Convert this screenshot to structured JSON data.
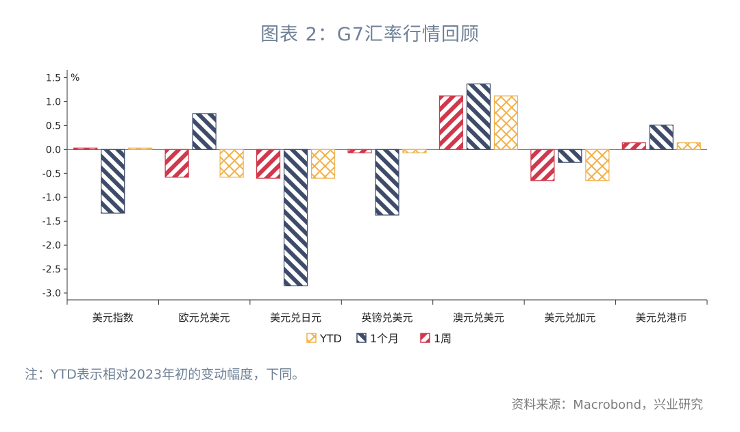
{
  "title": "图表 2：G7汇率行情回顾",
  "note": "注：YTD表示相对2023年初的变动幅度，下同。",
  "source": "资料来源：Macrobond，兴业研究",
  "chart_data": {
    "type": "bar",
    "unit": "%",
    "categories": [
      "美元指数",
      "欧元兑美元",
      "美元兑日元",
      "英镑兑美元",
      "澳元兑美元",
      "美元兑加元",
      "美元兑港币"
    ],
    "series": [
      {
        "name": "1周",
        "color": "#d0384b",
        "pattern": "diagonal",
        "values": [
          0.03,
          -0.58,
          -0.6,
          -0.07,
          1.12,
          -0.65,
          0.14
        ]
      },
      {
        "name": "1个月",
        "color": "#3e4c6a",
        "pattern": "diagonal",
        "values": [
          -1.33,
          0.75,
          -2.85,
          -1.37,
          1.37,
          -0.27,
          0.51
        ]
      },
      {
        "name": "YTD",
        "color": "#f0b14a",
        "pattern": "crosshatch",
        "values": [
          0.03,
          -0.58,
          -0.6,
          -0.07,
          1.12,
          -0.65,
          0.14
        ]
      }
    ],
    "legend_order": [
      "YTD",
      "1个月",
      "1周"
    ],
    "legend_position": "bottom",
    "ylim": [
      -3.0,
      1.5
    ],
    "yticks": [
      "1.5",
      "1.0",
      "0.5",
      "0.0",
      "-0.5",
      "-1.0",
      "-1.5",
      "-2.0",
      "-2.5",
      "-3.0"
    ],
    "ytick_values": [
      1.5,
      1.0,
      0.5,
      0.0,
      -0.5,
      -1.0,
      -1.5,
      -2.0,
      -2.5,
      -3.0
    ],
    "grid": false
  }
}
